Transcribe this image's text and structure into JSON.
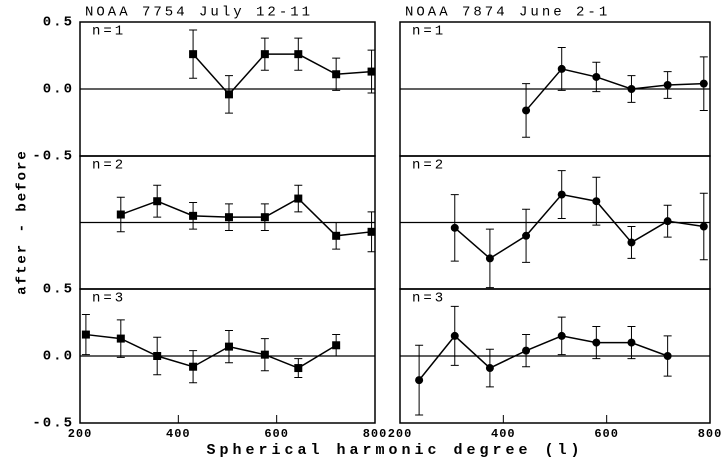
{
  "xlabel": "Spherical harmonic degree (l)",
  "ylabel": "after - before",
  "chart_data": [
    {
      "type": "line",
      "title": "NOAA 7754  July 12-11",
      "annotation": "n=1",
      "marker": "square",
      "color": "#000000",
      "x": [
        430,
        503,
        576,
        644,
        721,
        793
      ],
      "values": [
        0.26,
        -0.04,
        0.26,
        0.26,
        0.11,
        0.13
      ],
      "errors": [
        0.18,
        0.14,
        0.12,
        0.12,
        0.12,
        0.16
      ],
      "xlim": [
        200,
        800
      ],
      "ylim": [
        -0.5,
        0.5
      ],
      "yticks": [
        0.5,
        {
          "value": 0,
          "label": "0.0"
        },
        -0.5
      ]
    },
    {
      "type": "line",
      "title": "NOAA 7874  June 2-1",
      "annotation": "n=1",
      "marker": "circle",
      "color": "#000000",
      "x": [
        444,
        513,
        580,
        648,
        718,
        788
      ],
      "values": [
        -0.16,
        0.15,
        0.09,
        0.0,
        0.03,
        0.04
      ],
      "errors": [
        0.2,
        0.16,
        0.11,
        0.1,
        0.1,
        0.2
      ],
      "xlim": [
        200,
        800
      ],
      "ylim": [
        -0.5,
        0.5
      ]
    },
    {
      "type": "line",
      "annotation": "n=2",
      "marker": "square",
      "color": "#000000",
      "x": [
        283,
        357,
        430,
        503,
        576,
        644,
        721,
        793
      ],
      "values": [
        0.06,
        0.16,
        0.05,
        0.04,
        0.04,
        0.18,
        -0.1,
        -0.07
      ],
      "errors": [
        0.13,
        0.12,
        0.1,
        0.1,
        0.1,
        0.1,
        0.1,
        0.15
      ],
      "xlim": [
        200,
        800
      ],
      "ylim": [
        -0.5,
        0.5
      ]
    },
    {
      "type": "line",
      "annotation": "n=2",
      "marker": "circle",
      "color": "#000000",
      "x": [
        306,
        374,
        444,
        513,
        580,
        648,
        718,
        788
      ],
      "values": [
        -0.04,
        -0.27,
        -0.1,
        0.21,
        0.16,
        -0.15,
        0.01,
        -0.03
      ],
      "errors": [
        0.25,
        0.22,
        0.2,
        0.18,
        0.18,
        0.12,
        0.12,
        0.25
      ],
      "xlim": [
        200,
        800
      ],
      "ylim": [
        -0.5,
        0.5
      ]
    },
    {
      "type": "line",
      "annotation": "n=3",
      "marker": "square",
      "color": "#000000",
      "x": [
        212,
        283,
        357,
        430,
        503,
        576,
        644,
        721
      ],
      "values": [
        0.16,
        0.13,
        0.0,
        -0.08,
        0.07,
        0.01,
        -0.09,
        0.08
      ],
      "errors": [
        0.15,
        0.14,
        0.14,
        0.12,
        0.12,
        0.12,
        0.07,
        0.08
      ],
      "xlim": [
        200,
        800
      ],
      "ylim": [
        -0.5,
        0.5
      ],
      "yticks": [
        0.5,
        {
          "value": 0,
          "label": "0.0"
        },
        -0.5
      ],
      "xticks": [
        200,
        400,
        600,
        800
      ]
    },
    {
      "type": "line",
      "annotation": "n=3",
      "marker": "circle",
      "color": "#000000",
      "x": [
        237,
        306,
        374,
        444,
        513,
        580,
        648,
        718
      ],
      "values": [
        -0.18,
        0.15,
        -0.09,
        0.04,
        0.15,
        0.1,
        0.1,
        0.0
      ],
      "errors": [
        0.26,
        0.22,
        0.14,
        0.12,
        0.14,
        0.12,
        0.12,
        0.15
      ],
      "xlim": [
        200,
        800
      ],
      "ylim": [
        -0.5,
        0.5
      ],
      "xticks": [
        200,
        400,
        600,
        800
      ]
    }
  ]
}
